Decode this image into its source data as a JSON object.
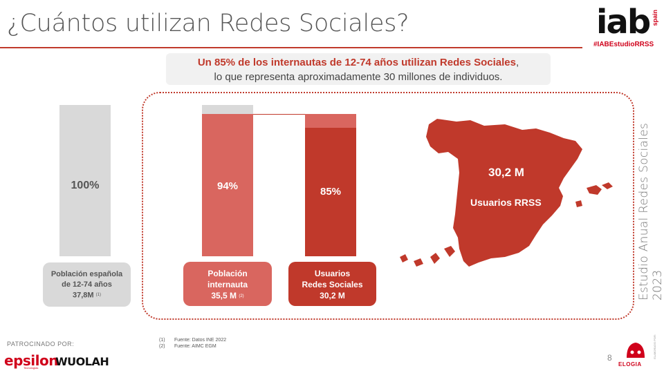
{
  "header": {
    "title": "¿Cuántos utilizan Redes Sociales?",
    "logo_text": "iab",
    "logo_sub": "spain",
    "hashtag": "#IABEstudioRRSS"
  },
  "callout": {
    "line1": "Un 85% de los internautas de 12-74 años utilizan Redes Sociales",
    "line1_end": ",",
    "line2": "lo que representa aproximadamente 30 millones de individuos."
  },
  "chart_data": {
    "type": "bar",
    "categories": [
      "Población española de 12-74 años",
      "Población internauta",
      "Usuarios Redes Sociales"
    ],
    "values": [
      100,
      94,
      85
    ],
    "labels": [
      "100%",
      "94%",
      "85%"
    ],
    "ylim": [
      0,
      100
    ],
    "colors": {
      "bar1": "#d9d9d9",
      "bar2": "#d9665f",
      "bar3": "#c0392b",
      "remainder": "#d9d9d9",
      "remainder3": "#d9665f"
    }
  },
  "labels": {
    "bar1": {
      "line1": "Población española",
      "line2": "de 12-74 años",
      "value": "37,8M",
      "note": "(1)"
    },
    "bar2": {
      "line1": "Población",
      "line2": "internauta",
      "value": "35,5 M",
      "note": "(2)"
    },
    "bar3": {
      "line1": "Usuarios",
      "line2": "Redes Sociales",
      "value": "30,2 M"
    }
  },
  "map": {
    "value": "30,2 M",
    "label": "Usuarios RRSS",
    "color": "#c0392b"
  },
  "side_text": "Estudio Anual Redes Sociales 2023",
  "footnotes": [
    {
      "num": "(1)",
      "text": "Fuente: Datos INE 2022"
    },
    {
      "num": "(2)",
      "text": "Fuente: AIMC EGM"
    }
  ],
  "footer": {
    "sponsor_label": "PATROCINADO POR:",
    "sponsor1": "epsilon",
    "sponsor1_sub": "Tecnologías",
    "sponsor2": "WUOLAH",
    "page_number": "8",
    "partner": "ELOGIA",
    "partner_note": "ELABORADO POR:"
  }
}
